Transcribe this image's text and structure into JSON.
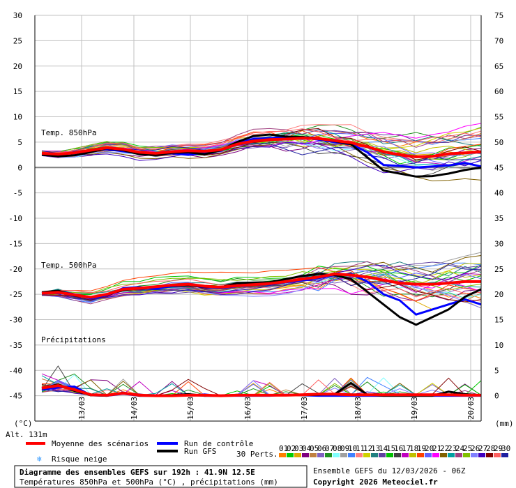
{
  "chart_data": {
    "type": "line",
    "ylabel_left_unit": "(°C)",
    "ylabel_right_unit": "(mm)",
    "altitude": "Alt. 131m",
    "y_left_ticks": [
      "30",
      "25",
      "20",
      "15",
      "10",
      "5",
      "0",
      "-5",
      "-10",
      "-15",
      "-20",
      "-25",
      "-30",
      "-35",
      "-40",
      "-45"
    ],
    "y_right_ticks": [
      "75",
      "70",
      "65",
      "60",
      "55",
      "50",
      "45",
      "40",
      "35",
      "30",
      "25",
      "20",
      "15",
      "10",
      "5",
      "0"
    ],
    "ylim_left": [
      -50,
      30
    ],
    "x_ticks": [
      "13/03",
      "14/03",
      "15/03",
      "16/03",
      "17/03",
      "18/03",
      "19/03",
      "20/03"
    ],
    "panel_labels": {
      "t850": "Temp. 850hPa",
      "t500": "Temp. 500hPa",
      "precip": "Précipitations"
    },
    "series": [
      {
        "name": "Moyenne des scénarios",
        "color": "#ff0000",
        "t850": [
          2.8,
          2.6,
          2.9,
          3.4,
          3.9,
          3.6,
          3.0,
          2.8,
          3.1,
          3.3,
          3.2,
          3.5,
          4.6,
          5.2,
          5.5,
          5.6,
          5.8,
          5.7,
          5.3,
          4.9,
          4.1,
          3.1,
          2.5,
          2.1,
          2.2,
          2.7,
          2.9,
          3.1
        ],
        "t500": [
          -24.8,
          -24.6,
          -25.1,
          -25.6,
          -25.0,
          -24.0,
          -23.8,
          -23.5,
          -23.2,
          -23.0,
          -23.4,
          -23.6,
          -23.3,
          -23.1,
          -22.9,
          -22.5,
          -22.0,
          -21.6,
          -21.0,
          -21.2,
          -21.6,
          -22.2,
          -22.8,
          -23.0,
          -23.0,
          -22.8,
          -22.5,
          -22.5
        ],
        "precip": [
          1.5,
          2.0,
          1.2,
          0.2,
          0.1,
          0.5,
          0.1,
          0.0,
          0.0,
          0.1,
          0.1,
          0.0,
          0.1,
          0.1,
          0.1,
          0.1,
          0.2,
          0.3,
          0.3,
          0.2,
          0.2,
          0.2,
          0.2,
          0.2,
          0.2,
          0.2,
          0.1,
          0.1
        ]
      },
      {
        "name": "Run de contrôle",
        "color": "#0000ff",
        "t850": [
          2.6,
          2.5,
          3.0,
          3.4,
          3.6,
          3.2,
          2.8,
          2.6,
          2.8,
          2.5,
          2.9,
          3.3,
          4.8,
          5.6,
          5.8,
          6.0,
          5.9,
          5.5,
          5.0,
          4.6,
          3.0,
          0.5,
          0.3,
          0.0,
          0.2,
          0.4,
          0.9,
          0.2
        ],
        "t500": [
          -24.8,
          -24.4,
          -25.0,
          -25.8,
          -25.2,
          -23.8,
          -23.6,
          -23.9,
          -23.4,
          -23.2,
          -23.6,
          -23.8,
          -23.4,
          -23.2,
          -23.0,
          -22.6,
          -22.3,
          -21.8,
          -21.2,
          -21.0,
          -22.5,
          -25.0,
          -26.2,
          -29.0,
          -28.0,
          -27.0,
          -26.0,
          -27.0
        ],
        "precip": [
          1.2,
          1.6,
          1.8,
          0.1,
          0.0,
          0.4,
          0.0,
          0.0,
          0.0,
          0.2,
          0.0,
          0.0,
          0.0,
          0.0,
          0.0,
          0.2,
          0.1,
          0.0,
          0.0,
          0.0,
          0.0,
          0.0,
          0.0,
          0.0,
          0.0,
          0.0,
          0.0,
          0.0
        ]
      },
      {
        "name": "Run GFS",
        "color": "#000000",
        "t850": [
          2.5,
          2.2,
          2.4,
          3.0,
          3.8,
          3.4,
          2.6,
          2.5,
          2.9,
          3.0,
          2.6,
          3.4,
          5.0,
          6.2,
          6.5,
          6.1,
          6.0,
          5.8,
          5.2,
          4.6,
          2.0,
          -0.6,
          -1.2,
          -1.8,
          -1.7,
          -1.2,
          -0.5,
          0.0
        ],
        "t500": [
          -24.6,
          -24.3,
          -25.2,
          -25.6,
          -25.0,
          -24.2,
          -23.8,
          -23.5,
          -23.3,
          -23.2,
          -23.5,
          -23.6,
          -22.8,
          -22.7,
          -22.6,
          -22.0,
          -21.4,
          -21.0,
          -21.2,
          -22.0,
          -24.5,
          -27.0,
          -29.5,
          -31.0,
          -29.5,
          -28.0,
          -25.5,
          -24.0
        ],
        "precip": [
          1.5,
          2.2,
          1.0,
          0.1,
          0.0,
          0.6,
          0.0,
          0.0,
          0.1,
          0.3,
          0.0,
          0.0,
          0.2,
          0.1,
          0.1,
          0.1,
          0.1,
          0.2,
          0.3,
          2.5,
          0.2,
          0.0,
          0.0,
          0.0,
          0.0,
          0.8,
          0.3,
          0.1
        ]
      }
    ],
    "perturbations": {
      "count_label": "30 Perts.",
      "labels": [
        "01",
        "02",
        "03",
        "04",
        "05",
        "06",
        "07",
        "08",
        "09",
        "10",
        "11",
        "12",
        "13",
        "14",
        "15",
        "16",
        "17",
        "18",
        "19",
        "20",
        "21",
        "22",
        "23",
        "24",
        "25",
        "26",
        "27",
        "28",
        "29",
        "30"
      ],
      "colors": [
        "#ff7f00",
        "#00cc00",
        "#ddaa00",
        "#7f007f",
        "#c08040",
        "#8060c0",
        "#209020",
        "#80ffff",
        "#a0a0a0",
        "#4080ff",
        "#ff8080",
        "#d0d000",
        "#208080",
        "#6040a0",
        "#00c000",
        "#404040",
        "#c000c0",
        "#c0c000",
        "#ff4000",
        "#6060ff",
        "#ff00ff",
        "#806000",
        "#00a0a0",
        "#a04080",
        "#80c000",
        "#8080ff",
        "#4000c0",
        "#800000",
        "#ff6060",
        "#2020a0"
      ]
    }
  },
  "legend": {
    "mean": "Moyenne des scénarios",
    "control": "Run de contrôle",
    "gfs": "Run GFS",
    "snow": "Risque neige",
    "snow_icon": "snowflake-icon"
  },
  "footer": {
    "title": "Diagramme des ensembles GEFS sur 192h : 41.9N 12.5E",
    "subtitle": "Températures 850hPa et 500hPa (°C) , précipitations (mm)",
    "run": "Ensemble GEFS du 12/03/2026 - 06Z",
    "copyright": "Copyright 2026 Meteociel.fr"
  }
}
